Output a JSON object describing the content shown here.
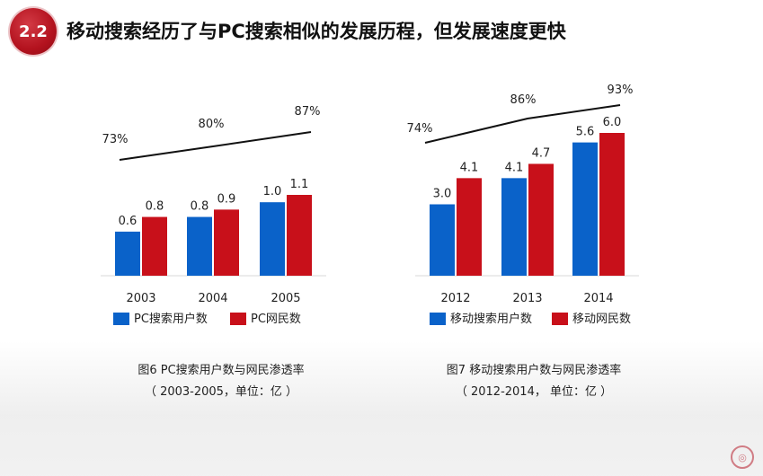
{
  "header": {
    "badge": "2.2",
    "title": "移动搜索经历了与PC搜索相似的发展历程，但发展速度更快"
  },
  "colors": {
    "blue": "#0a62c9",
    "red": "#c8101a",
    "line": "#111111",
    "accent": "#b3121e"
  },
  "chart_data": [
    {
      "type": "bar",
      "categories": [
        "2003",
        "2004",
        "2005"
      ],
      "series": [
        {
          "name": "PC搜索用户数",
          "values": [
            0.6,
            0.8,
            1.0
          ],
          "labels": [
            "0.6",
            "0.8",
            "1.0"
          ],
          "color": "#0a62c9"
        },
        {
          "name": "PC网民数",
          "values": [
            0.8,
            0.9,
            1.1
          ],
          "labels": [
            "0.8",
            "0.9",
            "1.1"
          ],
          "color": "#c8101a"
        }
      ],
      "line": {
        "name": "渗透率",
        "values": [
          73,
          80,
          87
        ],
        "labels": [
          "73%",
          "80%",
          "87%"
        ]
      },
      "ylim": [
        0,
        1.1
      ],
      "caption": "图6 PC搜索用户数与网民渗透率",
      "subcaption": "（ 2003-2005，单位：亿 ）"
    },
    {
      "type": "bar",
      "categories": [
        "2012",
        "2013",
        "2014"
      ],
      "series": [
        {
          "name": "移动搜索用户数",
          "values": [
            3.0,
            4.1,
            5.6
          ],
          "labels": [
            "3.0",
            "4.1",
            "5.6"
          ],
          "color": "#0a62c9"
        },
        {
          "name": "移动网民数",
          "values": [
            4.1,
            4.7,
            6.0
          ],
          "labels": [
            "4.1",
            "4.7",
            "6.0"
          ],
          "color": "#c8101a"
        }
      ],
      "line": {
        "name": "渗透率",
        "values": [
          74,
          86,
          93
        ],
        "labels": [
          "74%",
          "86%",
          "93%"
        ]
      },
      "ylim": [
        0,
        6.0
      ],
      "caption": "图7 移动搜索用户数与网民渗透率",
      "subcaption": "（ 2012-2014， 单位：亿 ）"
    }
  ],
  "footer": {
    "seal_glyph": "◎"
  }
}
